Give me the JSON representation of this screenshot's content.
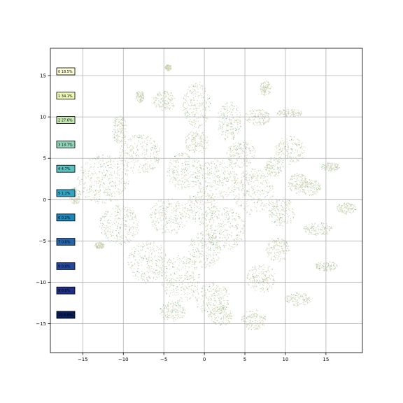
{
  "chart_data": {
    "type": "scatter",
    "title": "",
    "xlabel": "",
    "ylabel": "",
    "xlim": [
      -19,
      19.5
    ],
    "ylim": [
      -18.5,
      18.3
    ],
    "grid": true,
    "legend_placement": "left-inside",
    "x_ticks": [
      -15,
      -10,
      -5,
      0,
      5,
      10,
      15
    ],
    "y_ticks": [
      -15,
      -10,
      -5,
      0,
      5,
      10,
      15
    ],
    "x_tick_labels": [
      "−15",
      "−10",
      "−5",
      "0",
      "5",
      "10",
      "15"
    ],
    "y_tick_labels": [
      "−15",
      "−10",
      "−5",
      "0",
      "5",
      "10",
      "15"
    ],
    "legend": [
      {
        "label": "0 18.5%",
        "color": "#ffffd9",
        "text_color": "#000000"
      },
      {
        "label": "1 34.1%",
        "color": "#eef8b4",
        "text_color": "#000000"
      },
      {
        "label": "2 27.6%",
        "color": "#c7e9b4",
        "text_color": "#000000"
      },
      {
        "label": "3 13.7%",
        "color": "#8fd4b9",
        "text_color": "#000000"
      },
      {
        "label": "4 4.7%",
        "color": "#5bc0c0",
        "text_color": "#000000"
      },
      {
        "label": "5 1.2%",
        "color": "#2ea6c6",
        "text_color": "#000000"
      },
      {
        "label": "6 0.2%",
        "color": "#1d87bc",
        "text_color": "#000000"
      },
      {
        "label": "7 0.0%",
        "color": "#2365aa",
        "text_color": "#000000"
      },
      {
        "label": "8 0.0%",
        "color": "#24479c",
        "text_color": "#000000"
      },
      {
        "label": "9 0.0%",
        "color": "#1f2e86",
        "text_color": "#000000"
      },
      {
        "label": "10 0.0%",
        "color": "#081d58",
        "text_color": "#000000"
      }
    ],
    "point_colors": [
      "#d9d6c4",
      "#d7dab2",
      "#c6ddab",
      "#a9d3ad",
      "#86c2b3",
      "#6bb3b5"
    ],
    "clusters": [
      {
        "cx": -12.5,
        "cy": 2.5,
        "rx": 3.2,
        "ry": 3.0
      },
      {
        "cx": -10.5,
        "cy": -3.0,
        "rx": 2.5,
        "ry": 2.4
      },
      {
        "cx": -8.0,
        "cy": 5.5,
        "rx": 2.6,
        "ry": 2.4
      },
      {
        "cx": -10.5,
        "cy": 8.5,
        "rx": 0.9,
        "ry": 1.8
      },
      {
        "cx": -7.0,
        "cy": -7.5,
        "rx": 2.5,
        "ry": 2.6
      },
      {
        "cx": -3.0,
        "cy": -9.5,
        "rx": 2.4,
        "ry": 2.8
      },
      {
        "cx": -4.5,
        "cy": -2.0,
        "rx": 2.4,
        "ry": 2.2
      },
      {
        "cx": -2.5,
        "cy": 3.5,
        "rx": 2.2,
        "ry": 2.2
      },
      {
        "cx": 1.5,
        "cy": 2.5,
        "rx": 2.6,
        "ry": 2.4
      },
      {
        "cx": 2.5,
        "cy": -3.5,
        "rx": 2.5,
        "ry": 2.6
      },
      {
        "cx": 6.0,
        "cy": 1.0,
        "rx": 2.5,
        "ry": 2.8
      },
      {
        "cx": -1.0,
        "cy": 11.5,
        "rx": 1.7,
        "ry": 2.8
      },
      {
        "cx": 3.0,
        "cy": 9.5,
        "rx": 1.5,
        "ry": 2.4
      },
      {
        "cx": -5.0,
        "cy": 12.0,
        "rx": 1.4,
        "ry": 1.2
      },
      {
        "cx": 6.5,
        "cy": 10.0,
        "rx": 1.6,
        "ry": 1.0
      },
      {
        "cx": 10.5,
        "cy": 6.0,
        "rx": 1.8,
        "ry": 1.8
      },
      {
        "cx": 9.5,
        "cy": -1.5,
        "rx": 1.6,
        "ry": 1.8
      },
      {
        "cx": 7.0,
        "cy": -9.5,
        "rx": 1.8,
        "ry": 1.8
      },
      {
        "cx": 1.0,
        "cy": -12.0,
        "rx": 2.2,
        "ry": 2.0
      },
      {
        "cx": 6.0,
        "cy": -14.5,
        "rx": 1.6,
        "ry": 1.2
      },
      {
        "cx": 2.0,
        "cy": -14.0,
        "rx": 1.5,
        "ry": 1.2
      },
      {
        "cx": -4.0,
        "cy": -13.5,
        "rx": 1.6,
        "ry": 1.2
      },
      {
        "cx": 11.5,
        "cy": -12.0,
        "rx": 1.6,
        "ry": 0.8
      },
      {
        "cx": 14.0,
        "cy": -3.5,
        "rx": 1.8,
        "ry": 0.8
      },
      {
        "cx": 13.0,
        "cy": 1.5,
        "rx": 1.4,
        "ry": 1.0
      },
      {
        "cx": 17.5,
        "cy": -1.0,
        "rx": 1.2,
        "ry": 0.7
      },
      {
        "cx": 15.5,
        "cy": 4.0,
        "rx": 1.2,
        "ry": 0.5
      },
      {
        "cx": 10.5,
        "cy": 10.5,
        "rx": 1.6,
        "ry": 0.5
      },
      {
        "cx": 7.5,
        "cy": 13.5,
        "rx": 0.7,
        "ry": 0.9
      },
      {
        "cx": -4.5,
        "cy": 16.0,
        "rx": 0.4,
        "ry": 0.4
      },
      {
        "cx": -8.0,
        "cy": 12.5,
        "rx": 0.5,
        "ry": 0.7
      },
      {
        "cx": 15.0,
        "cy": -8.0,
        "rx": 1.4,
        "ry": 0.6
      },
      {
        "cx": -13.0,
        "cy": -5.5,
        "rx": 0.6,
        "ry": 0.4
      },
      {
        "cx": 0.0,
        "cy": -6.0,
        "rx": 2.0,
        "ry": 2.2
      },
      {
        "cx": 4.5,
        "cy": 5.5,
        "rx": 1.8,
        "ry": 1.6
      },
      {
        "cx": -0.5,
        "cy": -1.0,
        "rx": 2.0,
        "ry": 2.0
      },
      {
        "cx": 9.0,
        "cy": -6.0,
        "rx": 1.5,
        "ry": 1.5
      },
      {
        "cx": 11.5,
        "cy": 2.0,
        "rx": 1.2,
        "ry": 1.2
      },
      {
        "cx": -1.0,
        "cy": 7.0,
        "rx": 1.5,
        "ry": 1.4
      },
      {
        "cx": 8.5,
        "cy": 4.0,
        "rx": 1.2,
        "ry": 1.2
      },
      {
        "cx": -16.0,
        "cy": 0.5,
        "rx": 0.7,
        "ry": 1.0
      }
    ]
  }
}
